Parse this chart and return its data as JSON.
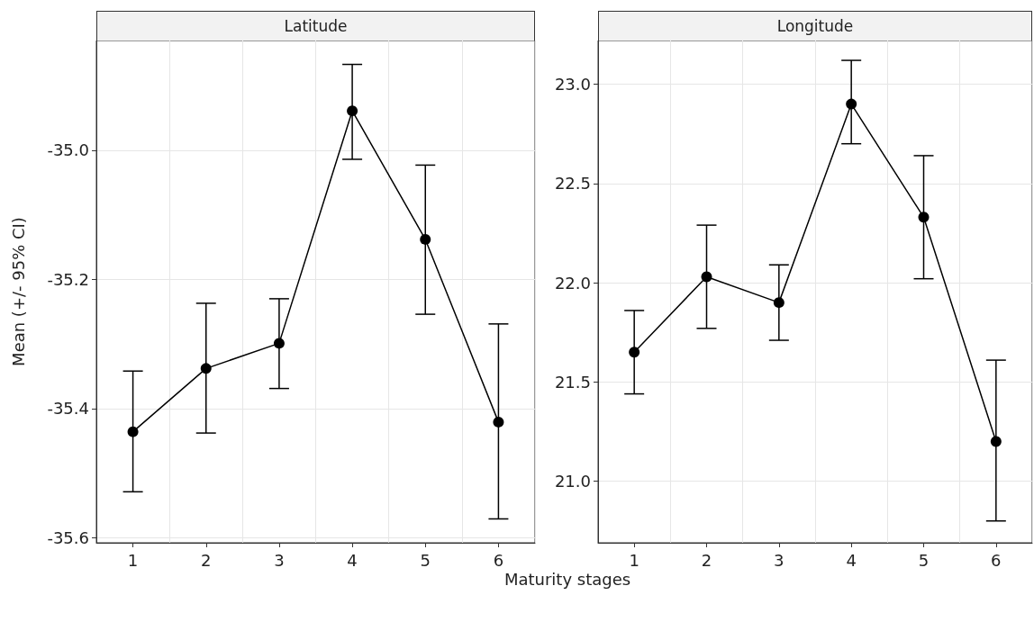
{
  "chart_data": [
    {
      "type": "line",
      "title": "Latitude",
      "xlabel": "Maturity stages",
      "ylabel": "Mean (+/- 95% CI)",
      "categories": [
        "1",
        "2",
        "3",
        "4",
        "5",
        "6"
      ],
      "series": [
        {
          "color": "#000000",
          "values": [
            -35.436,
            -35.338,
            -35.299,
            -34.939,
            -35.138,
            -35.421
          ],
          "errors": [
            [
              -35.529,
              -35.342
            ],
            [
              -35.438,
              -35.237
            ],
            [
              -35.369,
              -35.23
            ],
            [
              -35.014,
              -34.867
            ],
            [
              -35.254,
              -35.023
            ],
            [
              -35.571,
              -35.269
            ]
          ]
        }
      ],
      "ylim": [
        -35.608,
        -34.83
      ],
      "yticks": [
        {
          "value": -35.6,
          "label": "-35.6"
        },
        {
          "value": -35.4,
          "label": "-35.4"
        },
        {
          "value": -35.2,
          "label": "-35.2"
        },
        {
          "value": -35,
          "label": "-35.0"
        }
      ],
      "grid": true,
      "marker": "circle",
      "line_style": "solid"
    },
    {
      "type": "line",
      "title": "Longitude",
      "categories": [
        "1",
        "2",
        "3",
        "4",
        "5",
        "6"
      ],
      "series": [
        {
          "color": "#000000",
          "values": [
            21.65,
            22.03,
            21.9,
            22.9,
            22.33,
            21.2
          ],
          "errors": [
            [
              21.44,
              21.86
            ],
            [
              21.77,
              22.29
            ],
            [
              21.71,
              22.09
            ],
            [
              22.7,
              23.12
            ],
            [
              22.02,
              22.64
            ],
            [
              20.8,
              21.61
            ]
          ]
        }
      ],
      "ylim": [
        20.69,
        23.22
      ],
      "yticks": [
        {
          "value": 21,
          "label": "21.0"
        },
        {
          "value": 21.5,
          "label": "21.5"
        },
        {
          "value": 22,
          "label": "22.0"
        },
        {
          "value": 22.5,
          "label": "22.5"
        },
        {
          "value": 23,
          "label": "23.0"
        }
      ],
      "grid": true,
      "marker": "circle",
      "line_style": "solid"
    }
  ]
}
